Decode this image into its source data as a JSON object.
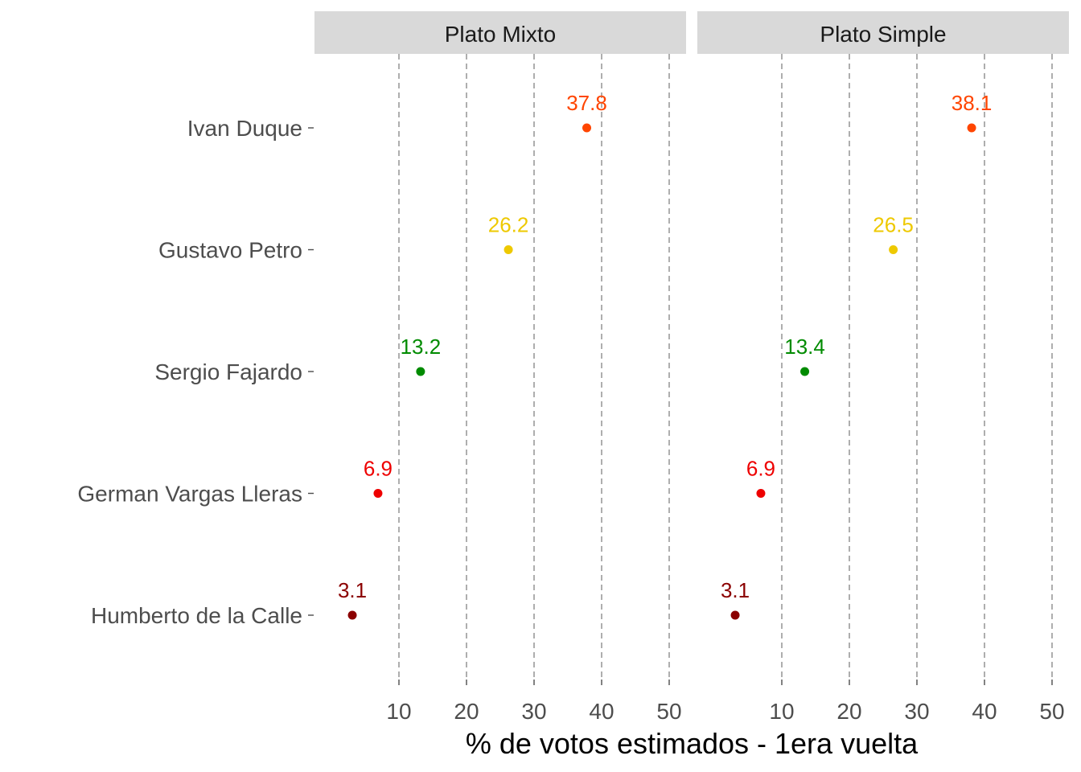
{
  "chart_data": {
    "type": "scatter",
    "xlabel": "% de votos estimados - 1era vuelta",
    "x_ticks": [
      10,
      20,
      30,
      40,
      50
    ],
    "xlim": [
      -2.5,
      52.5
    ],
    "grid": "vertical dashed",
    "categories": [
      "Ivan Duque",
      "Gustavo Petro",
      "Sergio Fajardo",
      "German Vargas Lleras",
      "Humberto de la Calle"
    ],
    "colors": {
      "Ivan Duque": "#ff4500",
      "Gustavo Petro": "#eec900",
      "Sergio Fajardo": "#008b00",
      "German Vargas Lleras": "#ee0000",
      "Humberto de la Calle": "#8b0000"
    },
    "panels": [
      {
        "title": "Plato Mixto",
        "points": [
          {
            "candidate": "Ivan Duque",
            "value": 37.8,
            "label": "37.8"
          },
          {
            "candidate": "Gustavo Petro",
            "value": 26.2,
            "label": "26.2"
          },
          {
            "candidate": "Sergio Fajardo",
            "value": 13.2,
            "label": "13.2"
          },
          {
            "candidate": "German Vargas Lleras",
            "value": 6.9,
            "label": "6.9"
          },
          {
            "candidate": "Humberto de la Calle",
            "value": 3.1,
            "label": "3.1"
          }
        ]
      },
      {
        "title": "Plato Simple",
        "points": [
          {
            "candidate": "Ivan Duque",
            "value": 38.1,
            "label": "38.1"
          },
          {
            "candidate": "Gustavo Petro",
            "value": 26.5,
            "label": "26.5"
          },
          {
            "candidate": "Sergio Fajardo",
            "value": 13.4,
            "label": "13.4"
          },
          {
            "candidate": "German Vargas Lleras",
            "value": 6.9,
            "label": "6.9"
          },
          {
            "candidate": "Humberto de la Calle",
            "value": 3.1,
            "label": "3.1"
          }
        ]
      }
    ]
  }
}
